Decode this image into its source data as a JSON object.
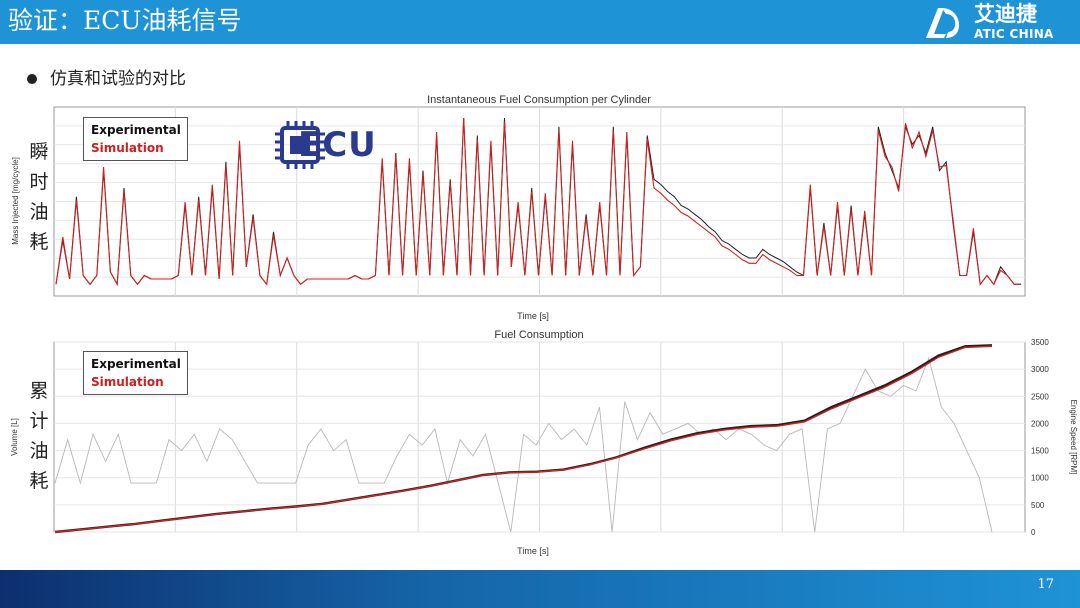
{
  "header": {
    "title": "验证：ECU油耗信号",
    "brand_cn": "艾迪捷",
    "brand_en": "ATIC CHINA",
    "accent": "#1e93d6"
  },
  "bullet": {
    "text": "仿真和试验的对比"
  },
  "side_labels": {
    "top": "瞬时油耗",
    "bottom": "累计油耗"
  },
  "ecu_logo": {
    "text": "ECU",
    "icon": "chip-icon",
    "color": "#2a3b8f"
  },
  "footer": {
    "page_number": "17"
  },
  "chart_data": [
    {
      "type": "line",
      "title": "Instantaneous Fuel Consumption per Cylinder",
      "xlabel": "Time [s]",
      "ylabel": "Mass Injected [mg/cycle]",
      "grid": true,
      "legend_placement": "top-left",
      "series": [
        {
          "name": "Experimental",
          "color": "#222222",
          "values": [
            0.05,
            0.3,
            0.08,
            0.55,
            0.1,
            0.05,
            0.1,
            0.7,
            0.12,
            0.05,
            0.6,
            0.1,
            0.05,
            0.1,
            0.08,
            0.08,
            0.08,
            0.08,
            0.1,
            0.5,
            0.1,
            0.55,
            0.1,
            0.6,
            0.08,
            0.75,
            0.1,
            0.85,
            0.15,
            0.45,
            0.1,
            0.05,
            0.35,
            0.1,
            0.2,
            0.1,
            0.05,
            0.08,
            0.08,
            0.08,
            0.08,
            0.08,
            0.08,
            0.08,
            0.1,
            0.08,
            0.08,
            0.1,
            0.75,
            0.1,
            0.8,
            0.1,
            0.75,
            0.1,
            0.7,
            0.1,
            0.9,
            0.1,
            0.65,
            0.1,
            1.0,
            0.1,
            0.9,
            0.1,
            0.85,
            0.1,
            1.0,
            0.15,
            0.5,
            0.1,
            0.6,
            0.1,
            0.55,
            0.1,
            0.95,
            0.1,
            0.85,
            0.1,
            0.45,
            0.1,
            0.5,
            0.1,
            0.95,
            0.1,
            0.9,
            0.1,
            0.15,
            0.9,
            0.65,
            0.62,
            0.58,
            0.55,
            0.5,
            0.48,
            0.45,
            0.42,
            0.38,
            0.35,
            0.3,
            0.28,
            0.25,
            0.22,
            0.2,
            0.2,
            0.25,
            0.22,
            0.2,
            0.18,
            0.15,
            0.12,
            0.1,
            0.6,
            0.1,
            0.4,
            0.1,
            0.5,
            0.1,
            0.5,
            0.1,
            0.45,
            0.1,
            0.95,
            0.8,
            0.7,
            0.6,
            0.95,
            0.85,
            0.9,
            0.8,
            0.95,
            0.7,
            0.75,
            0.4,
            0.1,
            0.1,
            0.35,
            0.05,
            0.1,
            0.05,
            0.15,
            0.1,
            0.05,
            0.05
          ]
        },
        {
          "name": "Simulation",
          "color": "#d21f1f",
          "values": [
            0.05,
            0.32,
            0.08,
            0.53,
            0.1,
            0.05,
            0.1,
            0.72,
            0.12,
            0.05,
            0.58,
            0.1,
            0.05,
            0.1,
            0.08,
            0.08,
            0.08,
            0.08,
            0.1,
            0.52,
            0.1,
            0.53,
            0.1,
            0.62,
            0.08,
            0.73,
            0.1,
            0.87,
            0.15,
            0.43,
            0.1,
            0.05,
            0.33,
            0.1,
            0.2,
            0.1,
            0.05,
            0.08,
            0.08,
            0.08,
            0.08,
            0.08,
            0.08,
            0.08,
            0.1,
            0.08,
            0.08,
            0.1,
            0.77,
            0.1,
            0.78,
            0.1,
            0.77,
            0.1,
            0.68,
            0.1,
            0.92,
            0.1,
            0.63,
            0.1,
            1.0,
            0.1,
            0.88,
            0.1,
            0.87,
            0.1,
            0.98,
            0.15,
            0.52,
            0.1,
            0.58,
            0.1,
            0.57,
            0.1,
            0.93,
            0.1,
            0.87,
            0.1,
            0.43,
            0.1,
            0.52,
            0.1,
            0.93,
            0.1,
            0.92,
            0.1,
            0.15,
            0.88,
            0.6,
            0.57,
            0.53,
            0.5,
            0.46,
            0.44,
            0.41,
            0.38,
            0.35,
            0.32,
            0.27,
            0.25,
            0.22,
            0.19,
            0.17,
            0.17,
            0.22,
            0.19,
            0.17,
            0.15,
            0.13,
            0.1,
            0.1,
            0.62,
            0.1,
            0.38,
            0.1,
            0.52,
            0.1,
            0.48,
            0.1,
            0.47,
            0.1,
            0.93,
            0.78,
            0.72,
            0.58,
            0.97,
            0.83,
            0.92,
            0.78,
            0.93,
            0.72,
            0.73,
            0.42,
            0.1,
            0.1,
            0.37,
            0.05,
            0.1,
            0.05,
            0.13,
            0.1,
            0.05,
            0.05
          ]
        }
      ]
    },
    {
      "type": "line",
      "title": "Fuel Consumption",
      "xlabel": "Time [s]",
      "ylabel": "Volume [L]",
      "y2label": "Engine Speed [RPM]",
      "y2ticks": [
        0,
        500,
        1000,
        1500,
        2000,
        2500,
        3000,
        3500
      ],
      "y2lim": [
        0,
        3500
      ],
      "grid": true,
      "legend_placement": "top-left",
      "series": [
        {
          "name": "Experimental",
          "color": "#222222",
          "values": [
            0,
            50,
            100,
            150,
            210,
            270,
            330,
            380,
            430,
            470,
            520,
            600,
            680,
            760,
            850,
            950,
            1050,
            1100,
            1110,
            1150,
            1250,
            1380,
            1550,
            1700,
            1820,
            1900,
            1950,
            1970,
            2050,
            2300,
            2500,
            2700,
            2950,
            3250,
            3420,
            3440
          ]
        },
        {
          "name": "Simulation",
          "color": "#d21f1f",
          "values": [
            0,
            48,
            98,
            148,
            207,
            266,
            326,
            376,
            426,
            466,
            516,
            596,
            676,
            756,
            846,
            946,
            1046,
            1096,
            1106,
            1146,
            1240,
            1370,
            1530,
            1680,
            1800,
            1880,
            1930,
            1950,
            2030,
            2270,
            2470,
            2670,
            2920,
            3220,
            3400,
            3420
          ]
        },
        {
          "name": "Engine Speed",
          "color": "#b8b8b8",
          "values": [
            900,
            1700,
            900,
            1800,
            1300,
            1800,
            900,
            900,
            900,
            1700,
            1500,
            1800,
            1300,
            1900,
            1700,
            1300,
            900,
            900,
            900,
            900,
            1600,
            1900,
            1500,
            1700,
            900,
            900,
            900,
            1400,
            1800,
            1600,
            1900,
            900,
            1700,
            1400,
            1800,
            900,
            0,
            1800,
            1600,
            2000,
            1700,
            1900,
            1600,
            2300,
            0,
            2400,
            1700,
            2200,
            1800,
            1900,
            2000,
            1800,
            1900,
            1700,
            1900,
            1800,
            1600,
            1500,
            1800,
            1900,
            0,
            1900,
            2000,
            2500,
            3000,
            2600,
            2500,
            2700,
            2600,
            3200,
            2300,
            2000,
            1500,
            1000,
            0
          ]
        }
      ]
    }
  ]
}
